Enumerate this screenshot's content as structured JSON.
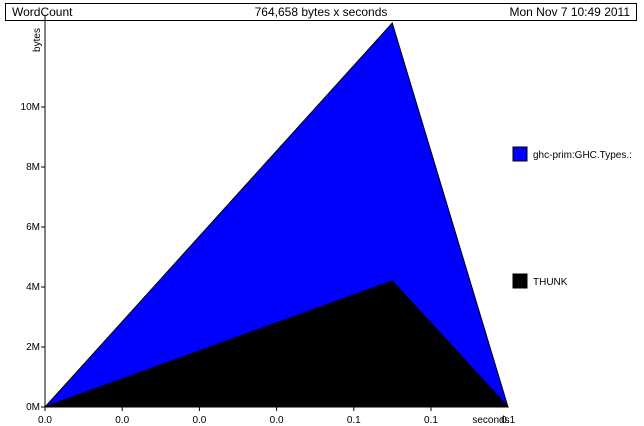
{
  "header": {
    "program": "WordCount",
    "total": "764,658 bytes x seconds",
    "timestamp": "Mon Nov  7 10:49 2011"
  },
  "chart_data": {
    "type": "area",
    "stacked": true,
    "ylabel": "bytes",
    "xlabel": "seconds",
    "y_ticks": [
      {
        "value": 0,
        "label": "0M"
      },
      {
        "value": 2000000,
        "label": "2M"
      },
      {
        "value": 4000000,
        "label": "4M"
      },
      {
        "value": 6000000,
        "label": "6M"
      },
      {
        "value": 8000000,
        "label": "8M"
      },
      {
        "value": 10000000,
        "label": "10M"
      }
    ],
    "x_tick_labels": [
      "0.0",
      "0.0",
      "0.0",
      "0.0",
      "0.1",
      "0.1",
      "0.1"
    ],
    "ylim": [
      0,
      12800000
    ],
    "x": [
      0,
      0.75,
      1
    ],
    "series": [
      {
        "name": "THUNK",
        "color": "#000000",
        "values": [
          0,
          4200000,
          0
        ]
      },
      {
        "name": "ghc-prim:GHC.Types.:",
        "color": "#0000ff",
        "values": [
          0,
          8600000,
          0
        ]
      }
    ],
    "legend": [
      {
        "name": "ghc-prim:GHC.Types.:",
        "color": "#0000ff"
      },
      {
        "name": "THUNK",
        "color": "#000000"
      }
    ],
    "legend_position": "right"
  }
}
